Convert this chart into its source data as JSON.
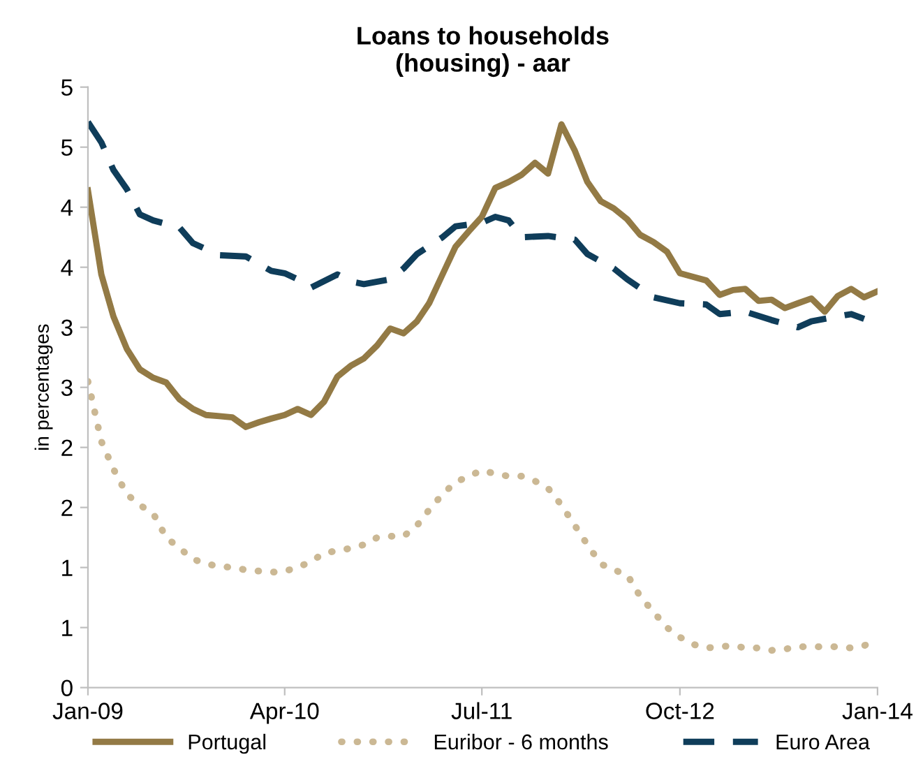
{
  "chart_data": {
    "type": "line",
    "title": "Loans to households\n(housing) - aar",
    "ylabel": "in percentages",
    "x": [
      "2009-01",
      "2009-02",
      "2009-03",
      "2009-04",
      "2009-05",
      "2009-06",
      "2009-07",
      "2009-08",
      "2009-09",
      "2009-10",
      "2009-11",
      "2009-12",
      "2010-01",
      "2010-02",
      "2010-03",
      "2010-04",
      "2010-05",
      "2010-06",
      "2010-07",
      "2010-08",
      "2010-09",
      "2010-10",
      "2010-11",
      "2010-12",
      "2011-01",
      "2011-02",
      "2011-03",
      "2011-04",
      "2011-05",
      "2011-06",
      "2011-07",
      "2011-08",
      "2011-09",
      "2011-10",
      "2011-11",
      "2011-12",
      "2012-01",
      "2012-02",
      "2012-03",
      "2012-04",
      "2012-05",
      "2012-06",
      "2012-07",
      "2012-08",
      "2012-09",
      "2012-10",
      "2012-11",
      "2012-12",
      "2013-01",
      "2013-02",
      "2013-03",
      "2013-04",
      "2013-05",
      "2013-06",
      "2013-07",
      "2013-08",
      "2013-09",
      "2013-10",
      "2013-11",
      "2013-12",
      "2014-01"
    ],
    "series": [
      {
        "name": "Portugal",
        "color": "#937a45",
        "line_style": "solid",
        "values": [
          4.14,
          3.44,
          3.09,
          2.82,
          2.65,
          2.58,
          2.54,
          2.4,
          2.32,
          2.27,
          2.26,
          2.25,
          2.17,
          2.21,
          2.24,
          2.27,
          2.32,
          2.27,
          2.38,
          2.59,
          2.68,
          2.74,
          2.85,
          2.99,
          2.95,
          3.05,
          3.2,
          3.44,
          3.67,
          3.8,
          3.92,
          4.16,
          4.21,
          4.27,
          4.37,
          4.28,
          4.69,
          4.47,
          4.21,
          4.05,
          3.99,
          3.9,
          3.77,
          3.71,
          3.63,
          3.45,
          3.42,
          3.39,
          3.27,
          3.31,
          3.32,
          3.22,
          3.23,
          3.16,
          3.2,
          3.24,
          3.13,
          3.26,
          3.32,
          3.25,
          3.3
        ]
      },
      {
        "name": "Euribor - 6 months",
        "color": "#cbb894",
        "line_style": "dotted",
        "values": [
          2.55,
          2.05,
          1.82,
          1.61,
          1.52,
          1.45,
          1.25,
          1.16,
          1.07,
          1.03,
          1.01,
          1.0,
          0.98,
          0.97,
          0.96,
          0.97,
          1.0,
          1.05,
          1.12,
          1.14,
          1.16,
          1.19,
          1.25,
          1.26,
          1.26,
          1.35,
          1.48,
          1.61,
          1.71,
          1.76,
          1.81,
          1.78,
          1.76,
          1.76,
          1.72,
          1.66,
          1.52,
          1.35,
          1.19,
          1.03,
          0.98,
          0.94,
          0.76,
          0.63,
          0.5,
          0.42,
          0.36,
          0.33,
          0.34,
          0.35,
          0.33,
          0.33,
          0.31,
          0.32,
          0.34,
          0.34,
          0.34,
          0.34,
          0.33,
          0.35,
          0.39
        ]
      },
      {
        "name": "Euro Area",
        "color": "#0f3d5a",
        "line_style": "dashed",
        "x": [
          "2009-01",
          "2009-02",
          "2009-03",
          "2009-04",
          "2009-05",
          "2009-06",
          "2009-08",
          "2009-09",
          "2009-11",
          "2010-01",
          "2010-03",
          "2010-04",
          "2010-05",
          "2010-06",
          "2010-08",
          "2010-09",
          "2010-10",
          "2010-12",
          "2011-01",
          "2011-02",
          "2011-04",
          "2011-05",
          "2011-07",
          "2011-08",
          "2011-09",
          "2011-10",
          "2011-12",
          "2012-02",
          "2012-03",
          "2012-05",
          "2012-06",
          "2012-08",
          "2012-10",
          "2012-12",
          "2013-01",
          "2013-03",
          "2013-05",
          "2013-07",
          "2013-08",
          "2013-11",
          "2013-12"
        ],
        "values": [
          4.71,
          4.54,
          4.31,
          4.15,
          3.94,
          3.89,
          3.83,
          3.7,
          3.6,
          3.59,
          3.47,
          3.45,
          3.4,
          3.33,
          3.44,
          3.38,
          3.36,
          3.4,
          3.49,
          3.61,
          3.75,
          3.84,
          3.87,
          3.92,
          3.89,
          3.75,
          3.76,
          3.73,
          3.61,
          3.49,
          3.4,
          3.25,
          3.2,
          3.19,
          3.11,
          3.13,
          3.06,
          3.0,
          3.05,
          3.11,
          3.07
        ]
      }
    ],
    "xlim": [
      "2009-01",
      "2014-01"
    ],
    "xticks": [
      {
        "value": "2009-01",
        "label": "Jan-09"
      },
      {
        "value": "2010-04",
        "label": "Apr-10"
      },
      {
        "value": "2011-07",
        "label": "Jul-11"
      },
      {
        "value": "2012-10",
        "label": "Oct-12"
      },
      {
        "value": "2014-01",
        "label": "Jan-14"
      }
    ],
    "ylim": [
      0,
      5
    ],
    "yticks": [
      {
        "value": 0,
        "label": "0"
      },
      {
        "value": 0.5,
        "label": "1"
      },
      {
        "value": 1,
        "label": "1"
      },
      {
        "value": 1.5,
        "label": "2"
      },
      {
        "value": 2,
        "label": "2"
      },
      {
        "value": 2.5,
        "label": "3"
      },
      {
        "value": 3,
        "label": "3"
      },
      {
        "value": 3.5,
        "label": "4"
      },
      {
        "value": 4,
        "label": "4"
      },
      {
        "value": 4.5,
        "label": "5"
      },
      {
        "value": 5,
        "label": "5"
      }
    ],
    "grid": false,
    "legend": "bottom",
    "marker": "none"
  }
}
